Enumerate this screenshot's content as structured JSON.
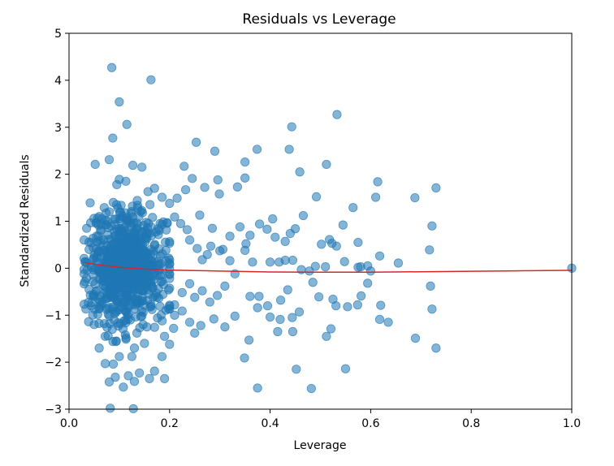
{
  "chart_data": {
    "type": "scatter",
    "title": "Residuals vs Leverage",
    "xlabel": "Leverage",
    "ylabel": "Standardized Residuals",
    "xlim": [
      0.0,
      1.0
    ],
    "ylim": [
      -3,
      5
    ],
    "xticks": [
      0.0,
      0.2,
      0.4,
      0.6,
      0.8,
      1.0
    ],
    "xtick_labels": [
      "0.0",
      "0.2",
      "0.4",
      "0.6",
      "0.8",
      "1.0"
    ],
    "yticks": [
      -3,
      -2,
      -1,
      0,
      1,
      2,
      3,
      4,
      5
    ],
    "ytick_labels": [
      "−3",
      "−2",
      "−1",
      "0",
      "1",
      "2",
      "3",
      "4",
      "5"
    ],
    "grid": false,
    "colors": {
      "points": "#1f77b4",
      "trend": "#d62728"
    },
    "series": [
      {
        "kind": "scatter",
        "points": [
          [
            0.085,
            4.27
          ],
          [
            0.163,
            4.01
          ],
          [
            0.1,
            3.54
          ],
          [
            0.115,
            3.06
          ],
          [
            0.087,
            2.77
          ],
          [
            0.08,
            2.31
          ],
          [
            0.052,
            2.21
          ],
          [
            0.145,
            2.15
          ],
          [
            0.127,
            2.19
          ],
          [
            0.1,
            1.89
          ],
          [
            0.113,
            1.85
          ],
          [
            0.157,
            1.63
          ],
          [
            0.17,
            1.7
          ],
          [
            0.095,
            1.78
          ],
          [
            0.042,
            1.39
          ],
          [
            0.07,
            1.29
          ],
          [
            0.06,
            1.1
          ],
          [
            0.035,
            0.85
          ],
          [
            0.03,
            0.6
          ],
          [
            0.04,
            0.4
          ],
          [
            0.032,
            0.13
          ],
          [
            0.04,
            -0.45
          ],
          [
            0.05,
            -0.6
          ],
          [
            0.06,
            -0.85
          ],
          [
            0.05,
            -1.2
          ],
          [
            0.072,
            -1.45
          ],
          [
            0.06,
            -1.7
          ],
          [
            0.072,
            -2.03
          ],
          [
            0.088,
            -2.04
          ],
          [
            0.08,
            -2.42
          ],
          [
            0.092,
            -2.32
          ],
          [
            0.108,
            -2.53
          ],
          [
            0.118,
            -2.29
          ],
          [
            0.1,
            -1.88
          ],
          [
            0.125,
            -1.88
          ],
          [
            0.13,
            -1.7
          ],
          [
            0.15,
            -1.6
          ],
          [
            0.14,
            -2.23
          ],
          [
            0.13,
            -2.41
          ],
          [
            0.16,
            -2.35
          ],
          [
            0.19,
            -2.35
          ],
          [
            0.17,
            -2.19
          ],
          [
            0.185,
            -1.88
          ],
          [
            0.2,
            -1.62
          ],
          [
            0.208,
            -1.28
          ],
          [
            0.19,
            -1.45
          ],
          [
            0.082,
            -2.98
          ],
          [
            0.128,
            -2.99
          ],
          [
            0.176,
            -1.06
          ],
          [
            0.21,
            -1.0
          ],
          [
            0.225,
            -0.91
          ],
          [
            0.24,
            -1.15
          ],
          [
            0.25,
            -1.38
          ],
          [
            0.262,
            -1.22
          ],
          [
            0.288,
            -1.08
          ],
          [
            0.31,
            -1.25
          ],
          [
            0.33,
            -1.02
          ],
          [
            0.349,
            -1.91
          ],
          [
            0.358,
            -1.53
          ],
          [
            0.36,
            -0.6
          ],
          [
            0.378,
            -0.6
          ],
          [
            0.375,
            -0.84
          ],
          [
            0.395,
            -0.8
          ],
          [
            0.4,
            -1.04
          ],
          [
            0.421,
            -0.68
          ],
          [
            0.435,
            -0.46
          ],
          [
            0.42,
            -1.09
          ],
          [
            0.444,
            -1.05
          ],
          [
            0.445,
            -1.35
          ],
          [
            0.375,
            -2.55
          ],
          [
            0.415,
            -1.35
          ],
          [
            0.452,
            -2.15
          ],
          [
            0.458,
            -0.93
          ],
          [
            0.482,
            -2.56
          ],
          [
            0.485,
            -0.3
          ],
          [
            0.497,
            -0.61
          ],
          [
            0.512,
            -1.45
          ],
          [
            0.521,
            -1.29
          ],
          [
            0.525,
            -0.66
          ],
          [
            0.531,
            -0.8
          ],
          [
            0.55,
            -2.14
          ],
          [
            0.554,
            -0.82
          ],
          [
            0.574,
            -0.78
          ],
          [
            0.581,
            -0.59
          ],
          [
            0.594,
            -0.32
          ],
          [
            0.618,
            -1.09
          ],
          [
            0.635,
            -1.15
          ],
          [
            0.62,
            -0.79
          ],
          [
            0.689,
            -1.49
          ],
          [
            0.719,
            -0.38
          ],
          [
            0.722,
            -0.87
          ],
          [
            0.73,
            -1.7
          ],
          [
            0.405,
            1.05
          ],
          [
            0.379,
            0.94
          ],
          [
            0.394,
            0.83
          ],
          [
            0.41,
            0.66
          ],
          [
            0.43,
            0.57
          ],
          [
            0.45,
            0.84
          ],
          [
            0.44,
            0.74
          ],
          [
            0.466,
            1.12
          ],
          [
            0.374,
            2.53
          ],
          [
            0.438,
            2.53
          ],
          [
            0.443,
            3.01
          ],
          [
            0.459,
            2.05
          ],
          [
            0.35,
            2.26
          ],
          [
            0.35,
            1.92
          ],
          [
            0.29,
            2.49
          ],
          [
            0.296,
            1.88
          ],
          [
            0.299,
            1.58
          ],
          [
            0.335,
            1.73
          ],
          [
            0.27,
            1.72
          ],
          [
            0.253,
            2.68
          ],
          [
            0.229,
            2.17
          ],
          [
            0.245,
            1.91
          ],
          [
            0.232,
            1.67
          ],
          [
            0.215,
            1.49
          ],
          [
            0.2,
            1.38
          ],
          [
            0.185,
            1.51
          ],
          [
            0.533,
            3.27
          ],
          [
            0.512,
            2.21
          ],
          [
            0.492,
            1.52
          ],
          [
            0.518,
            0.61
          ],
          [
            0.532,
            0.47
          ],
          [
            0.545,
            0.92
          ],
          [
            0.565,
            1.29
          ],
          [
            0.575,
            0.55
          ],
          [
            0.61,
            1.51
          ],
          [
            0.614,
            1.84
          ],
          [
            0.618,
            0.26
          ],
          [
            0.655,
            0.11
          ],
          [
            0.688,
            1.5
          ],
          [
            0.722,
            0.9
          ],
          [
            0.717,
            0.39
          ],
          [
            0.73,
            1.71
          ],
          [
            0.502,
            0.51
          ],
          [
            0.523,
            0.53
          ],
          [
            0.548,
            0.14
          ],
          [
            0.575,
            0.02
          ],
          [
            0.58,
            0.03
          ],
          [
            0.594,
            0.05
          ],
          [
            0.6,
            -0.06
          ],
          [
            0.478,
            -0.06
          ],
          [
            0.49,
            0.04
          ],
          [
            0.51,
            0.03
          ],
          [
            0.43,
            0.17
          ],
          [
            0.445,
            0.17
          ],
          [
            0.418,
            0.13
          ],
          [
            0.4,
            0.13
          ],
          [
            0.462,
            -0.03
          ],
          [
            0.365,
            0.13
          ],
          [
            0.35,
            0.38
          ],
          [
            0.352,
            0.52
          ],
          [
            0.36,
            0.7
          ],
          [
            0.34,
            0.88
          ],
          [
            0.32,
            0.68
          ],
          [
            0.306,
            0.4
          ],
          [
            0.282,
            0.47
          ],
          [
            0.275,
            0.29
          ],
          [
            0.265,
            0.18
          ],
          [
            0.255,
            0.42
          ],
          [
            0.24,
            0.6
          ],
          [
            0.235,
            0.82
          ],
          [
            0.222,
            0.95
          ],
          [
            0.21,
            1.09
          ],
          [
            0.195,
            0.97
          ],
          [
            0.26,
            1.13
          ],
          [
            0.285,
            0.85
          ],
          [
            0.3,
            0.37
          ],
          [
            0.32,
            0.16
          ],
          [
            0.33,
            -0.12
          ],
          [
            0.31,
            -0.38
          ],
          [
            0.295,
            -0.58
          ],
          [
            0.28,
            -0.72
          ],
          [
            0.265,
            -0.48
          ],
          [
            0.25,
            -0.62
          ],
          [
            0.24,
            -0.33
          ],
          [
            0.225,
            -0.52
          ],
          [
            0.21,
            -0.78
          ],
          [
            0.198,
            -0.46
          ],
          [
            0.185,
            -0.28
          ],
          [
            0.175,
            -0.62
          ],
          [
            0.165,
            -0.88
          ],
          [
            0.155,
            -1.25
          ],
          [
            0.145,
            -1.02
          ],
          [
            0.135,
            -1.38
          ],
          [
            0.122,
            -1.1
          ],
          [
            0.112,
            -1.42
          ],
          [
            0.102,
            -1.18
          ],
          [
            0.094,
            -1.55
          ],
          [
            0.086,
            -1.3
          ],
          [
            0.078,
            -0.98
          ],
          [
            0.07,
            -1.18
          ],
          [
            0.062,
            -0.72
          ],
          [
            0.056,
            -0.48
          ],
          [
            0.048,
            -0.28
          ],
          [
            0.044,
            0.05
          ],
          [
            0.05,
            0.28
          ],
          [
            0.056,
            0.56
          ],
          [
            0.064,
            0.82
          ],
          [
            0.072,
            1.02
          ],
          [
            0.08,
            1.2
          ],
          [
            0.088,
            1.4
          ],
          [
            0.097,
            1.28
          ],
          [
            0.106,
            1.12
          ],
          [
            0.116,
            1.02
          ],
          [
            0.126,
            1.32
          ],
          [
            0.136,
            0.92
          ],
          [
            0.146,
            1.18
          ],
          [
            0.156,
            0.86
          ],
          [
            0.166,
            1.08
          ],
          [
            1.0,
            0.0
          ]
        ]
      },
      {
        "kind": "cluster",
        "x_range": [
          0.03,
          0.2
        ],
        "y_range": [
          -1.2,
          1.2
        ],
        "count": 700,
        "seed": 7
      },
      {
        "kind": "line",
        "points": [
          [
            0.03,
            0.12
          ],
          [
            0.06,
            0.07
          ],
          [
            0.1,
            0.02
          ],
          [
            0.15,
            -0.02
          ],
          [
            0.2,
            -0.04
          ],
          [
            0.3,
            -0.06
          ],
          [
            0.4,
            -0.08
          ],
          [
            0.5,
            -0.085
          ],
          [
            0.6,
            -0.085
          ],
          [
            0.7,
            -0.075
          ],
          [
            0.8,
            -0.065
          ],
          [
            0.9,
            -0.055
          ],
          [
            1.0,
            -0.045
          ]
        ]
      }
    ]
  }
}
